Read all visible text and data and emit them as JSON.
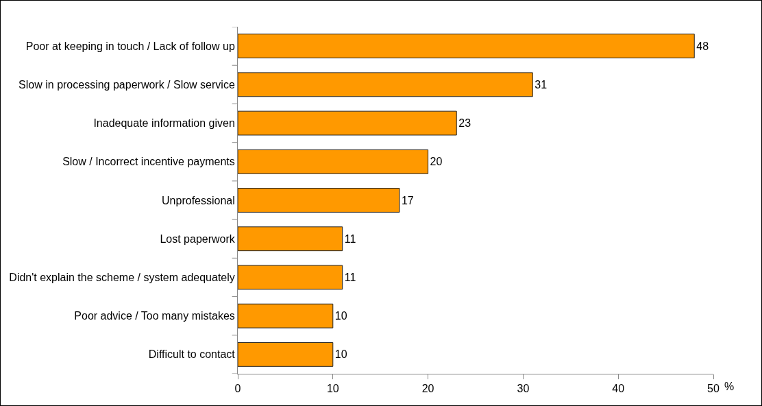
{
  "chart_data": {
    "type": "bar",
    "orientation": "horizontal",
    "xlabel": "%",
    "categories": [
      "Poor at keeping in touch / Lack of follow up",
      "Slow in processing paperwork / Slow service",
      "Inadequate information given",
      "Slow / Incorrect incentive payments",
      "Unprofessional",
      "Lost paperwork",
      "Didn't explain the scheme / system adequately",
      "Poor advice / Too many mistakes",
      "Difficult to contact"
    ],
    "values": [
      48,
      31,
      23,
      20,
      17,
      11,
      11,
      10,
      10
    ],
    "color": "#ff9900",
    "data_labels": true,
    "xlim": [
      0,
      50
    ],
    "xticks": [
      0,
      10,
      20,
      30,
      40,
      50
    ],
    "grid": false
  }
}
